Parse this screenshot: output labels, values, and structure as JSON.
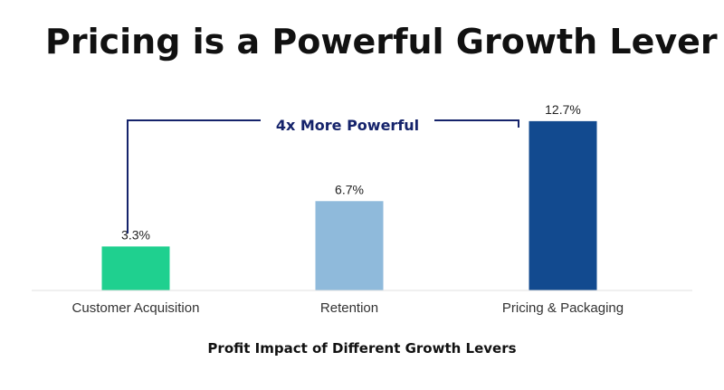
{
  "slide": {
    "title": "Pricing is a Powerful Growth Lever"
  },
  "chart_data": {
    "type": "bar",
    "title": "Profit Impact of Different Growth Levers",
    "categories": [
      "Customer Acquisition",
      "Retention",
      "Pricing & Packaging"
    ],
    "values": [
      3.3,
      6.7,
      12.7
    ],
    "value_labels": [
      "3.3%",
      "6.7%",
      "12.7%"
    ],
    "bar_colors": [
      "#1fd08f",
      "#8fbadb",
      "#124a8f"
    ],
    "ylim": [
      0,
      15
    ],
    "xlabel": "",
    "ylabel": "",
    "grid": false,
    "annotation": {
      "text": "4x More Powerful",
      "from_category": "Customer Acquisition",
      "to_category": "Pricing & Packaging",
      "color": "#15236b"
    }
  }
}
